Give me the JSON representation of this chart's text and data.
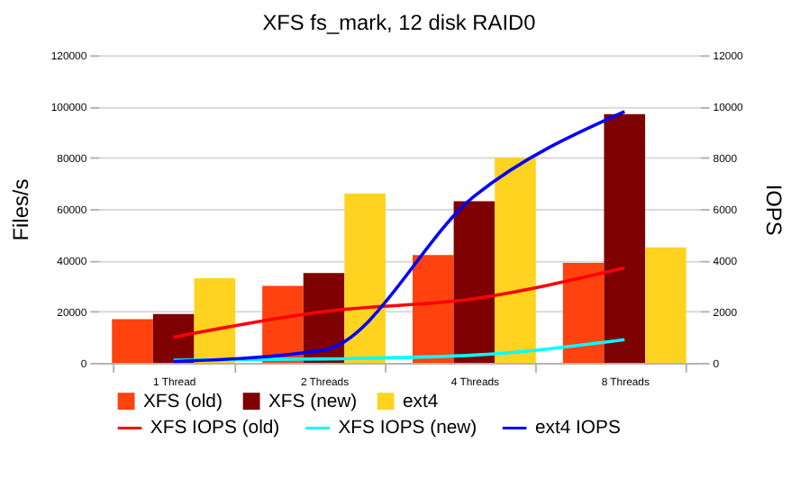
{
  "chart_data": {
    "type": "bar",
    "title": "XFS fs_mark, 12 disk RAID0",
    "ylabel": "Files/s",
    "y2label": "IOPS",
    "categories": [
      "1 Thread",
      "2 Threads",
      "4 Threads",
      "8 Threads"
    ],
    "series": [
      {
        "name": "XFS (old)",
        "color": "#ff420e",
        "values": [
          17000,
          30000,
          42000,
          39000
        ]
      },
      {
        "name": "XFS (new)",
        "color": "#7e0000",
        "values": [
          19000,
          35000,
          63000,
          97000
        ]
      },
      {
        "name": "ext4",
        "color": "#ffd320",
        "values": [
          33000,
          66000,
          80000,
          45000
        ]
      },
      {
        "name": "XFS IOPS (old)",
        "type": "line",
        "axis": "y2",
        "color": "#ff0000",
        "values": [
          1000,
          2000,
          2500,
          3700
        ]
      },
      {
        "name": "XFS IOPS (new)",
        "type": "line",
        "axis": "y2",
        "color": "#00ffff",
        "values": [
          100,
          150,
          300,
          900
        ]
      },
      {
        "name": "ext4 IOPS",
        "type": "line",
        "axis": "y2",
        "color": "#0000ff",
        "values": [
          50,
          500,
          6500,
          9800
        ]
      }
    ],
    "ylim": [
      0,
      120000
    ],
    "yticks": [
      0,
      20000,
      40000,
      60000,
      80000,
      100000,
      120000
    ],
    "y2lim": [
      0,
      12000
    ],
    "y2ticks": [
      0,
      2000,
      4000,
      6000,
      8000,
      10000,
      12000
    ],
    "grid": "y",
    "legend": "bottom"
  }
}
